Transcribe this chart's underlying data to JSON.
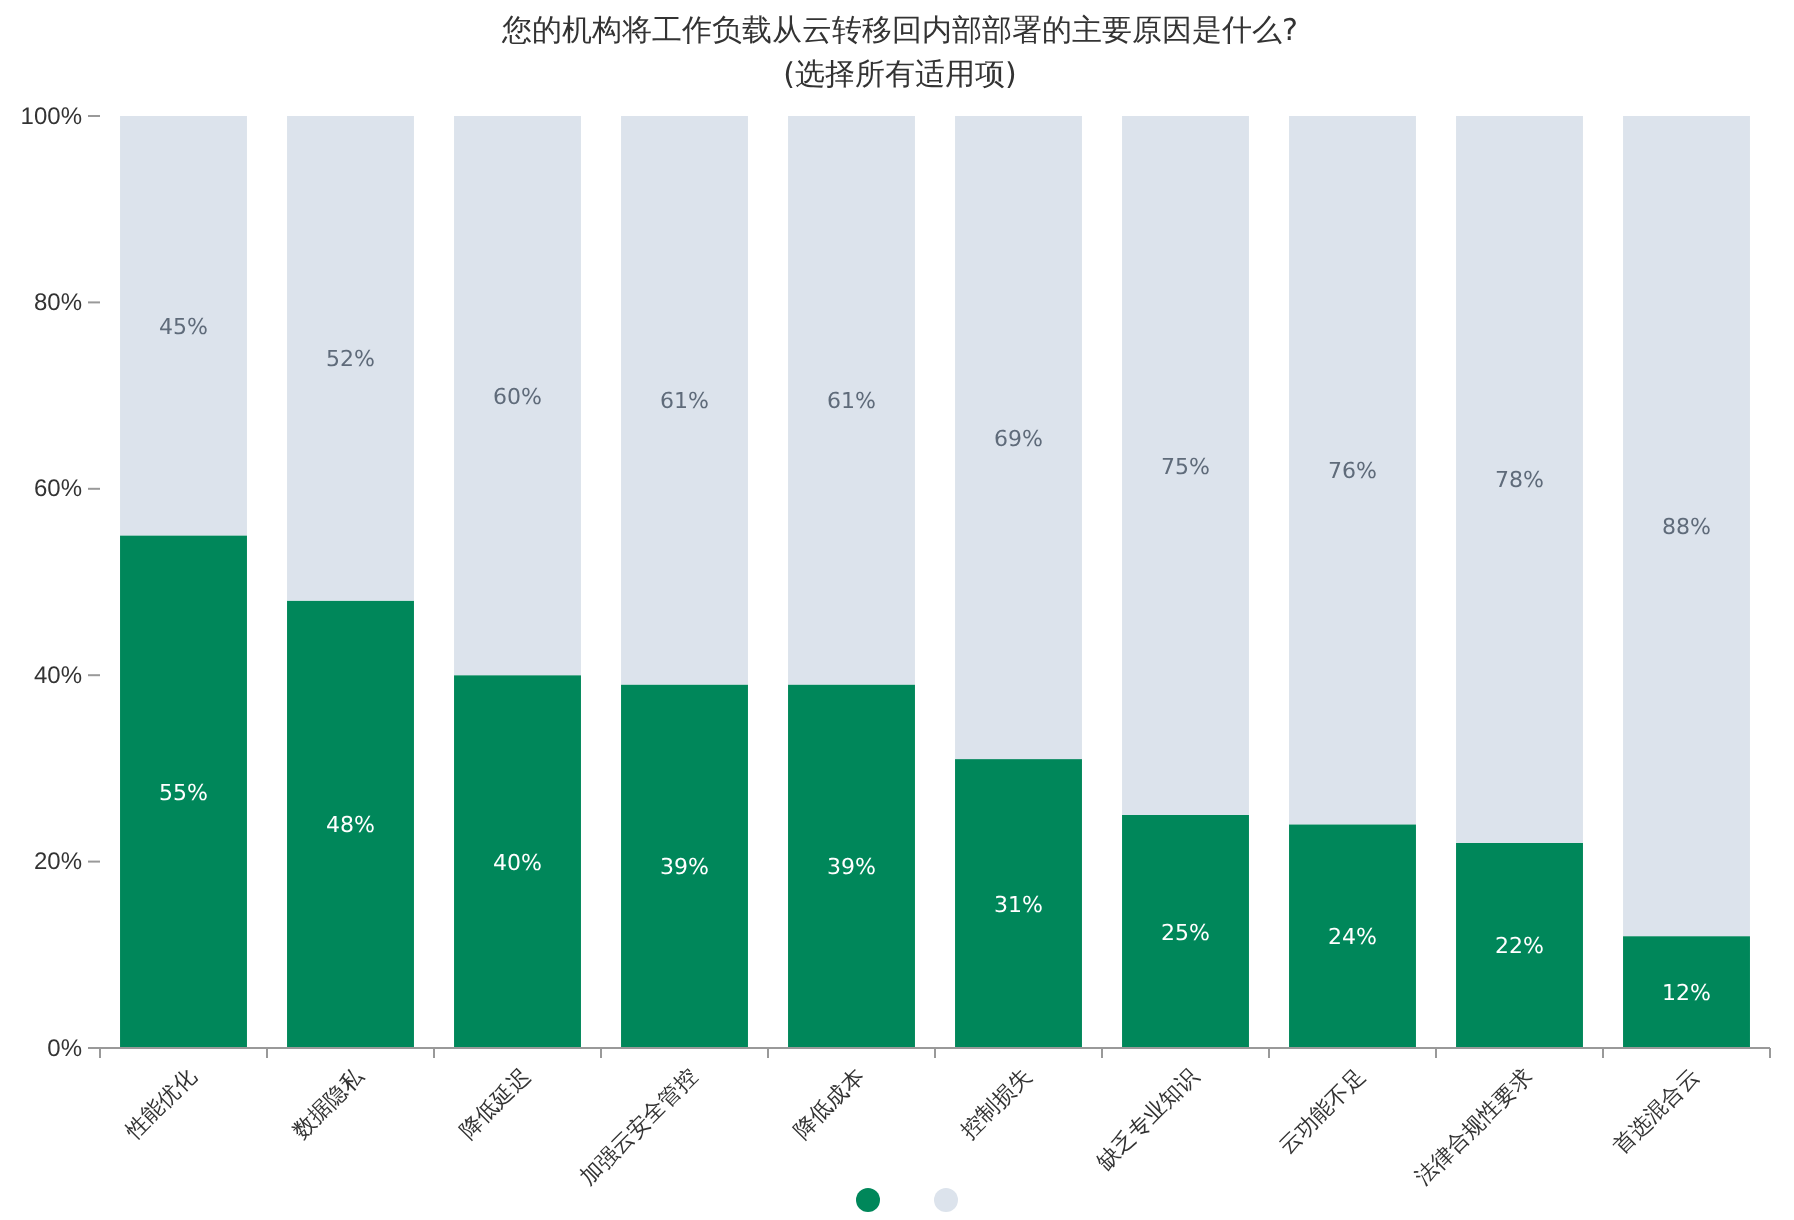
{
  "chart_data": {
    "type": "bar",
    "title": "您的机构将工作负载从云转移回内部部署的主要原因是什么?",
    "subtitle": "(选择所有适用项)",
    "categories": [
      "性能优化",
      "数据隐私",
      "降低延迟",
      "加强云安全管控",
      "降低成本",
      "控制损失",
      "缺乏专业知识",
      "云功能不足",
      "法律合规性要求",
      "首选混合云"
    ],
    "series": [
      {
        "color": "#00875a",
        "values": [
          55,
          48,
          40,
          39,
          39,
          31,
          25,
          24,
          22,
          12
        ],
        "value_labels": [
          "55%",
          "48%",
          "40%",
          "39%",
          "39%",
          "31%",
          "25%",
          "24%",
          "22%",
          "12%"
        ]
      },
      {
        "color": "#dce3ec",
        "values": [
          45,
          52,
          60,
          61,
          61,
          69,
          75,
          76,
          78,
          88
        ],
        "value_labels": [
          "45%",
          "52%",
          "60%",
          "61%",
          "61%",
          "69%",
          "75%",
          "76%",
          "78%",
          "88%"
        ]
      }
    ],
    "stacked": true,
    "ylim": [
      0,
      100
    ],
    "yticks": [
      {
        "value": 0,
        "label": "0%"
      },
      {
        "value": 20,
        "label": "20%"
      },
      {
        "value": 40,
        "label": "40%"
      },
      {
        "value": 60,
        "label": "60%"
      },
      {
        "value": 80,
        "label": "80%"
      },
      {
        "value": 100,
        "label": "100%"
      }
    ]
  }
}
